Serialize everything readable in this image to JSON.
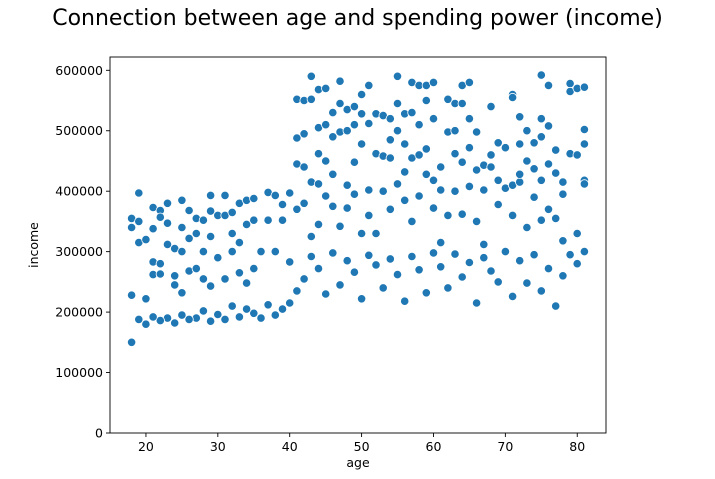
{
  "chart_data": {
    "type": "scatter",
    "title": "Connection between age and spending power (income)",
    "xlabel": "age",
    "ylabel": "income",
    "xlim": [
      15,
      84
    ],
    "ylim": [
      0,
      622000
    ],
    "xticks": [
      20,
      30,
      40,
      50,
      60,
      70,
      80
    ],
    "yticks": [
      0,
      100000,
      200000,
      300000,
      400000,
      500000,
      600000
    ],
    "grid": false,
    "point_color": "#1f77b4",
    "series": [
      {
        "points": [
          [
            18,
            355000
          ],
          [
            18,
            340000
          ],
          [
            18,
            228000
          ],
          [
            18,
            150000
          ],
          [
            19,
            397000
          ],
          [
            19,
            350000
          ],
          [
            19,
            315000
          ],
          [
            20,
            320000
          ],
          [
            20,
            222000
          ],
          [
            21,
            373000
          ],
          [
            21,
            338000
          ],
          [
            21,
            283000
          ],
          [
            21,
            262000
          ],
          [
            22,
            368000
          ],
          [
            22,
            357000
          ],
          [
            22,
            280000
          ],
          [
            22,
            263000
          ],
          [
            23,
            380000
          ],
          [
            23,
            347000
          ],
          [
            23,
            312000
          ],
          [
            24,
            305000
          ],
          [
            24,
            260000
          ],
          [
            24,
            245000
          ],
          [
            25,
            385000
          ],
          [
            25,
            340000
          ],
          [
            25,
            300000
          ],
          [
            25,
            232000
          ],
          [
            26,
            368000
          ],
          [
            26,
            322000
          ],
          [
            26,
            268000
          ],
          [
            27,
            355000
          ],
          [
            27,
            330000
          ],
          [
            27,
            272000
          ],
          [
            28,
            352000
          ],
          [
            28,
            300000
          ],
          [
            28,
            255000
          ],
          [
            29,
            393000
          ],
          [
            29,
            367000
          ],
          [
            29,
            325000
          ],
          [
            29,
            243000
          ],
          [
            30,
            360000
          ],
          [
            30,
            290000
          ],
          [
            31,
            393000
          ],
          [
            31,
            360000
          ],
          [
            31,
            255000
          ],
          [
            32,
            365000
          ],
          [
            32,
            330000
          ],
          [
            32,
            300000
          ],
          [
            33,
            380000
          ],
          [
            33,
            315000
          ],
          [
            33,
            265000
          ],
          [
            34,
            385000
          ],
          [
            34,
            345000
          ],
          [
            34,
            248000
          ],
          [
            35,
            388000
          ],
          [
            35,
            352000
          ],
          [
            35,
            272000
          ],
          [
            36,
            300000
          ],
          [
            37,
            398000
          ],
          [
            37,
            352000
          ],
          [
            38,
            393000
          ],
          [
            38,
            300000
          ],
          [
            39,
            378000
          ],
          [
            39,
            352000
          ],
          [
            40,
            397000
          ],
          [
            40,
            283000
          ],
          [
            41,
            552000
          ],
          [
            41,
            488000
          ],
          [
            41,
            445000
          ],
          [
            41,
            370000
          ],
          [
            42,
            550000
          ],
          [
            42,
            495000
          ],
          [
            42,
            440000
          ],
          [
            42,
            380000
          ],
          [
            43,
            590000
          ],
          [
            43,
            552000
          ],
          [
            43,
            415000
          ],
          [
            43,
            325000
          ],
          [
            44,
            568000
          ],
          [
            44,
            505000
          ],
          [
            44,
            462000
          ],
          [
            44,
            412000
          ],
          [
            44,
            345000
          ],
          [
            45,
            570000
          ],
          [
            45,
            510000
          ],
          [
            45,
            450000
          ],
          [
            45,
            392000
          ],
          [
            46,
            530000
          ],
          [
            46,
            490000
          ],
          [
            46,
            428000
          ],
          [
            46,
            375000
          ],
          [
            47,
            582000
          ],
          [
            47,
            545000
          ],
          [
            47,
            498000
          ],
          [
            47,
            342000
          ],
          [
            48,
            535000
          ],
          [
            48,
            500000
          ],
          [
            48,
            410000
          ],
          [
            48,
            372000
          ],
          [
            49,
            540000
          ],
          [
            49,
            510000
          ],
          [
            49,
            448000
          ],
          [
            49,
            395000
          ],
          [
            50,
            560000
          ],
          [
            50,
            528000
          ],
          [
            50,
            478000
          ],
          [
            50,
            330000
          ],
          [
            51,
            575000
          ],
          [
            51,
            512000
          ],
          [
            51,
            402000
          ],
          [
            51,
            360000
          ],
          [
            52,
            528000
          ],
          [
            52,
            462000
          ],
          [
            52,
            330000
          ],
          [
            53,
            525000
          ],
          [
            53,
            458000
          ],
          [
            53,
            400000
          ],
          [
            54,
            520000
          ],
          [
            54,
            485000
          ],
          [
            54,
            455000
          ],
          [
            54,
            370000
          ],
          [
            55,
            590000
          ],
          [
            55,
            545000
          ],
          [
            55,
            500000
          ],
          [
            55,
            412000
          ],
          [
            56,
            528000
          ],
          [
            56,
            478000
          ],
          [
            56,
            432000
          ],
          [
            56,
            385000
          ],
          [
            57,
            580000
          ],
          [
            57,
            530000
          ],
          [
            57,
            455000
          ],
          [
            57,
            350000
          ],
          [
            58,
            575000
          ],
          [
            58,
            510000
          ],
          [
            58,
            460000
          ],
          [
            58,
            392000
          ],
          [
            59,
            575000
          ],
          [
            59,
            550000
          ],
          [
            59,
            470000
          ],
          [
            59,
            428000
          ],
          [
            60,
            580000
          ],
          [
            60,
            520000
          ],
          [
            60,
            418000
          ],
          [
            60,
            372000
          ],
          [
            61,
            440000
          ],
          [
            61,
            402000
          ],
          [
            61,
            315000
          ],
          [
            62,
            552000
          ],
          [
            62,
            498000
          ],
          [
            62,
            360000
          ],
          [
            63,
            545000
          ],
          [
            63,
            500000
          ],
          [
            63,
            462000
          ],
          [
            63,
            400000
          ],
          [
            64,
            575000
          ],
          [
            64,
            545000
          ],
          [
            64,
            448000
          ],
          [
            64,
            362000
          ],
          [
            65,
            580000
          ],
          [
            65,
            520000
          ],
          [
            65,
            472000
          ],
          [
            65,
            408000
          ],
          [
            66,
            498000
          ],
          [
            66,
            435000
          ],
          [
            66,
            350000
          ],
          [
            67,
            443000
          ],
          [
            67,
            402000
          ],
          [
            67,
            312000
          ],
          [
            68,
            540000
          ],
          [
            68,
            460000
          ],
          [
            68,
            440000
          ],
          [
            69,
            480000
          ],
          [
            69,
            418000
          ],
          [
            69,
            378000
          ],
          [
            70,
            472000
          ],
          [
            70,
            405000
          ],
          [
            71,
            560000
          ],
          [
            71,
            555000
          ],
          [
            71,
            410000
          ],
          [
            71,
            360000
          ],
          [
            72,
            523000
          ],
          [
            72,
            478000
          ],
          [
            72,
            415000
          ],
          [
            72,
            428000
          ],
          [
            73,
            500000
          ],
          [
            73,
            450000
          ],
          [
            73,
            340000
          ],
          [
            74,
            480000
          ],
          [
            74,
            437000
          ],
          [
            74,
            390000
          ],
          [
            75,
            592000
          ],
          [
            75,
            520000
          ],
          [
            75,
            490000
          ],
          [
            75,
            418000
          ],
          [
            75,
            352000
          ],
          [
            76,
            575000
          ],
          [
            76,
            508000
          ],
          [
            76,
            445000
          ],
          [
            76,
            370000
          ],
          [
            77,
            468000
          ],
          [
            77,
            430000
          ],
          [
            77,
            355000
          ],
          [
            78,
            415000
          ],
          [
            78,
            395000
          ],
          [
            78,
            318000
          ],
          [
            79,
            578000
          ],
          [
            79,
            565000
          ],
          [
            79,
            462000
          ],
          [
            80,
            570000
          ],
          [
            80,
            460000
          ],
          [
            80,
            330000
          ],
          [
            81,
            572000
          ],
          [
            81,
            502000
          ],
          [
            81,
            478000
          ],
          [
            81,
            418000
          ],
          [
            81,
            412000
          ],
          [
            81,
            300000
          ],
          [
            80,
            280000
          ],
          [
            79,
            295000
          ],
          [
            78,
            260000
          ],
          [
            77,
            210000
          ],
          [
            76,
            272000
          ],
          [
            75,
            235000
          ],
          [
            74,
            295000
          ],
          [
            73,
            248000
          ],
          [
            72,
            285000
          ],
          [
            71,
            226000
          ],
          [
            70,
            300000
          ],
          [
            69,
            250000
          ],
          [
            68,
            268000
          ],
          [
            67,
            290000
          ],
          [
            66,
            215000
          ],
          [
            65,
            282000
          ],
          [
            64,
            258000
          ],
          [
            63,
            296000
          ],
          [
            62,
            240000
          ],
          [
            61,
            275000
          ],
          [
            60,
            298000
          ],
          [
            59,
            232000
          ],
          [
            58,
            270000
          ],
          [
            57,
            292000
          ],
          [
            56,
            218000
          ],
          [
            55,
            262000
          ],
          [
            54,
            288000
          ],
          [
            53,
            240000
          ],
          [
            52,
            278000
          ],
          [
            51,
            294000
          ],
          [
            50,
            222000
          ],
          [
            49,
            266000
          ],
          [
            48,
            285000
          ],
          [
            47,
            245000
          ],
          [
            46,
            298000
          ],
          [
            45,
            230000
          ],
          [
            44,
            272000
          ],
          [
            43,
            292000
          ],
          [
            42,
            255000
          ],
          [
            41,
            235000
          ],
          [
            40,
            215000
          ],
          [
            39,
            205000
          ],
          [
            38,
            195000
          ],
          [
            37,
            212000
          ],
          [
            36,
            190000
          ],
          [
            35,
            198000
          ],
          [
            34,
            205000
          ],
          [
            33,
            192000
          ],
          [
            32,
            210000
          ],
          [
            31,
            188000
          ],
          [
            30,
            196000
          ],
          [
            29,
            185000
          ],
          [
            28,
            202000
          ],
          [
            27,
            190000
          ],
          [
            26,
            188000
          ],
          [
            25,
            195000
          ],
          [
            24,
            182000
          ],
          [
            23,
            190000
          ],
          [
            22,
            186000
          ],
          [
            21,
            192000
          ],
          [
            20,
            180000
          ],
          [
            19,
            188000
          ]
        ]
      }
    ]
  }
}
